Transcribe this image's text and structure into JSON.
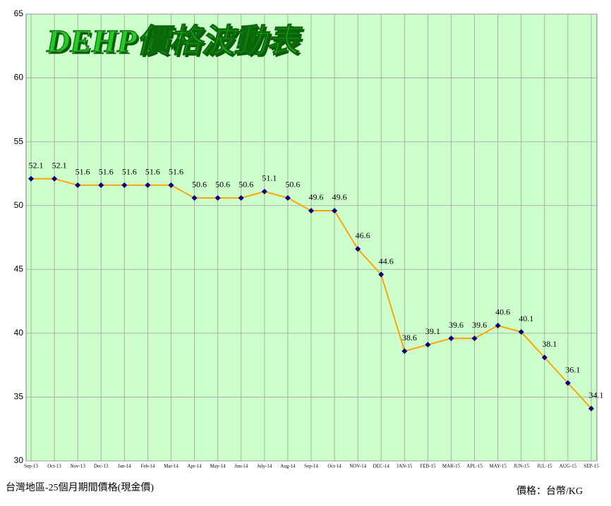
{
  "chart_data": {
    "type": "line",
    "title": "DEHP價格波動表",
    "footnote": "台灣地區-25個月期間價格(現金價)",
    "unit": "價格：台幣/KG",
    "categories": [
      "Sep-13",
      "Oct-13",
      "Nov-13",
      "Dec-13",
      "Jan-14",
      "Feb-14",
      "Mar-14",
      "Apr-14",
      "May-14",
      "Jun-14",
      "July-14",
      "Aug-14",
      "Sep-14",
      "Oct-14",
      "NOV-14",
      "DEC-14",
      "JAN-15",
      "FEB-15",
      "MAR-15",
      "APL-15",
      "MAY-15",
      "JUN-15",
      "JUL-15",
      "AUG-15",
      "SEP-15"
    ],
    "values": [
      52.1,
      52.1,
      51.6,
      51.6,
      51.6,
      51.6,
      51.6,
      50.6,
      50.6,
      50.6,
      51.1,
      50.6,
      49.6,
      49.6,
      46.6,
      44.6,
      38.6,
      39.1,
      39.6,
      39.6,
      40.6,
      40.1,
      38.1,
      36.1,
      34.1
    ],
    "color": "#ffa500",
    "marker_color": "#000080",
    "ylim": [
      30,
      65
    ],
    "yticks": [
      30,
      35,
      40,
      45,
      50,
      55,
      60,
      65
    ],
    "grid": true
  }
}
